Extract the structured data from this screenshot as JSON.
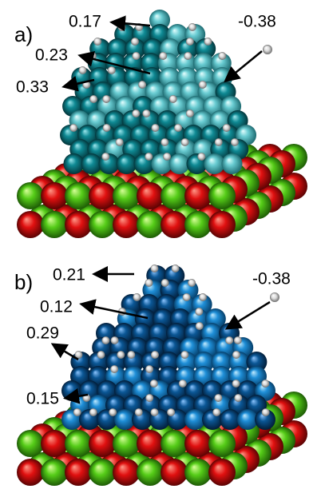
{
  "panels": [
    {
      "label": "a)",
      "annotations": [
        "0.17",
        "0.23",
        "0.33",
        "-0.38"
      ]
    },
    {
      "label": "b)",
      "annotations": [
        "0.21",
        "0.12",
        "0.29",
        "0.15",
        "-0.38"
      ]
    }
  ]
}
